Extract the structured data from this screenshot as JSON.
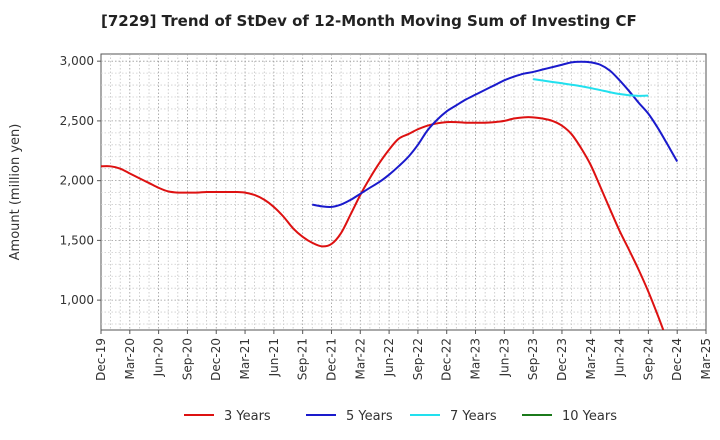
{
  "chart_data": {
    "type": "line",
    "title": "[7229]  Trend of StDev of 12-Month Moving Sum of Investing CF",
    "xlabel": "",
    "ylabel": "Amount (million yen)",
    "ylim": [
      750,
      3060
    ],
    "yticks": [
      1000,
      1500,
      2000,
      2500,
      3000
    ],
    "ytick_labels": [
      "1,000",
      "1,500",
      "2,000",
      "2,500",
      "3,000"
    ],
    "x_tick_labels": [
      "Dec-19",
      "Mar-20",
      "Jun-20",
      "Sep-20",
      "Dec-20",
      "Mar-21",
      "Jun-21",
      "Sep-21",
      "Dec-21",
      "Mar-22",
      "Jun-22",
      "Sep-22",
      "Dec-22",
      "Mar-23",
      "Jun-23",
      "Sep-23",
      "Dec-23",
      "Mar-24",
      "Jun-24",
      "Sep-24",
      "Dec-24",
      "Mar-25"
    ],
    "grid": true,
    "legend_position": "bottom",
    "series": [
      {
        "name": "3 Years",
        "color": "#dd1111",
        "x": [
          0,
          0.33,
          0.67,
          1,
          1.33,
          1.67,
          2,
          2.33,
          2.67,
          3,
          3.33,
          3.67,
          4,
          4.33,
          4.67,
          5,
          5.33,
          5.67,
          6,
          6.33,
          6.67,
          7,
          7.33,
          7.67,
          8,
          8.33,
          8.67,
          9,
          9.33,
          9.67,
          10,
          10.33,
          10.67,
          11,
          11.33,
          11.67,
          12,
          12.33,
          12.67,
          13,
          13.33,
          13.67,
          14,
          14.33,
          14.67,
          15,
          15.33,
          15.67,
          16,
          16.33,
          16.67,
          17,
          17.33,
          17.67,
          18,
          18.33,
          18.67,
          19,
          19.33,
          19.67,
          20
        ],
        "y": [
          2120,
          2120,
          2100,
          2060,
          2020,
          1980,
          1940,
          1910,
          1900,
          1900,
          1900,
          1905,
          1905,
          1905,
          1905,
          1900,
          1880,
          1840,
          1780,
          1700,
          1600,
          1530,
          1480,
          1450,
          1470,
          1560,
          1720,
          1880,
          2020,
          2150,
          2260,
          2350,
          2390,
          2430,
          2460,
          2480,
          2490,
          2490,
          2485,
          2485,
          2485,
          2490,
          2500,
          2520,
          2530,
          2530,
          2520,
          2500,
          2460,
          2390,
          2270,
          2130,
          1950,
          1760,
          1580,
          1420,
          1250,
          1070,
          870,
          650,
          430
        ]
      },
      {
        "name": "5 Years",
        "color": "#1a1acc",
        "x": [
          7.33,
          7.67,
          8,
          8.33,
          8.67,
          9,
          9.33,
          9.67,
          10,
          10.33,
          10.67,
          11,
          11.33,
          11.67,
          12,
          12.33,
          12.67,
          13,
          13.33,
          13.67,
          14,
          14.33,
          14.67,
          15,
          15.33,
          15.67,
          16,
          16.33,
          16.67,
          17,
          17.33,
          17.67,
          18,
          18.33,
          18.67,
          19,
          19.33,
          19.67,
          20
        ],
        "y": [
          1800,
          1785,
          1780,
          1800,
          1840,
          1890,
          1940,
          1990,
          2050,
          2120,
          2200,
          2300,
          2420,
          2510,
          2580,
          2630,
          2680,
          2720,
          2760,
          2800,
          2840,
          2870,
          2895,
          2910,
          2930,
          2950,
          2970,
          2990,
          2995,
          2990,
          2970,
          2920,
          2840,
          2750,
          2650,
          2560,
          2440,
          2300,
          2160
        ]
      },
      {
        "name": "7 Years",
        "color": "#22e0ee",
        "x": [
          15,
          15.33,
          15.67,
          16,
          16.33,
          16.67,
          17,
          17.33,
          17.67,
          18,
          18.33,
          18.67,
          19
        ],
        "y": [
          2850,
          2838,
          2826,
          2815,
          2803,
          2790,
          2775,
          2758,
          2740,
          2725,
          2715,
          2710,
          2712
        ]
      },
      {
        "name": "10 Years",
        "color": "#1b7a1b",
        "x": [],
        "y": []
      }
    ]
  }
}
